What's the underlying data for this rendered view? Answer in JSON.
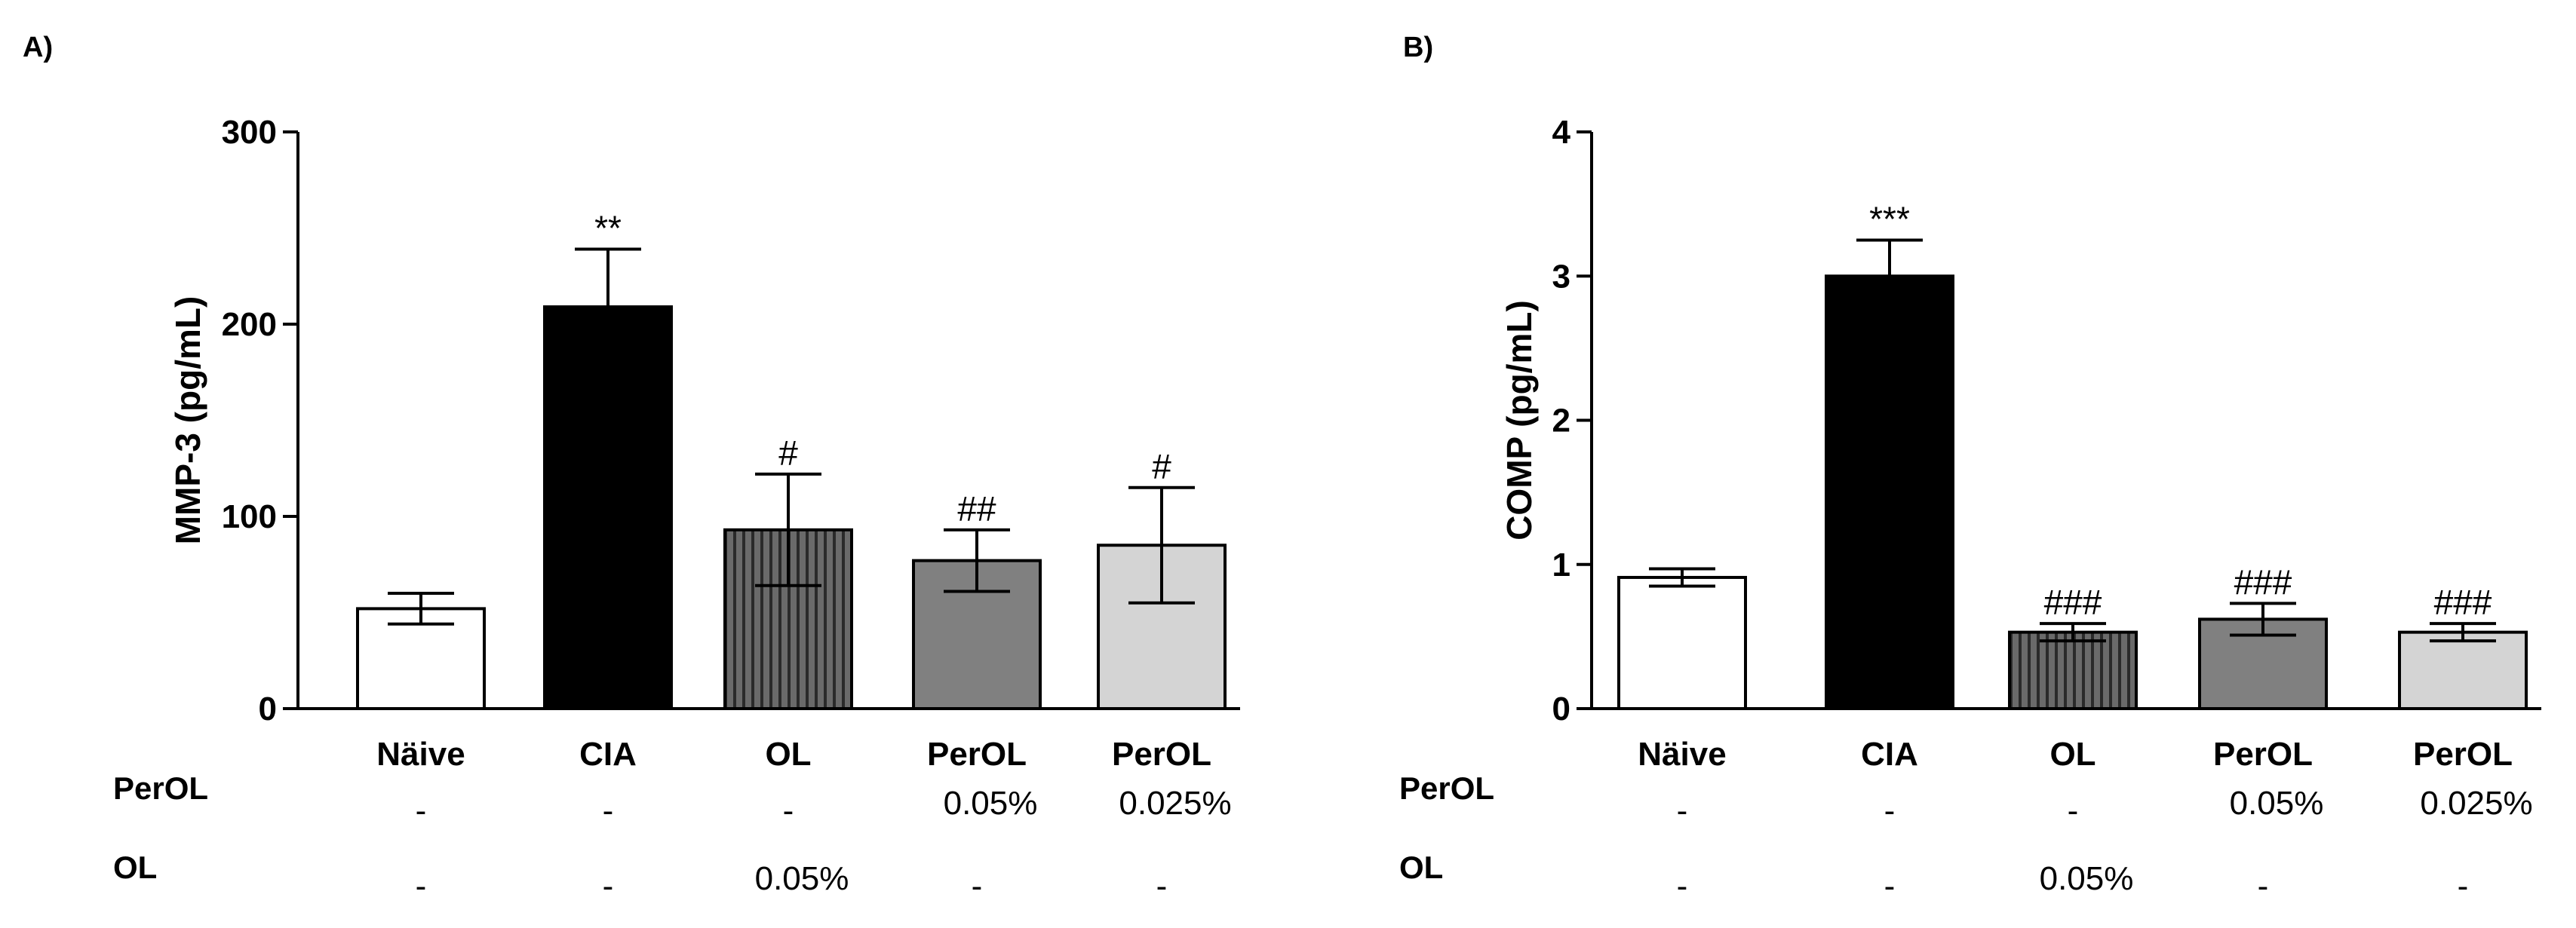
{
  "chart_data": [
    {
      "panel": "A)",
      "type": "bar",
      "ylabel": "MMP-3 (pg/mL)",
      "xlabel": "",
      "ylim": [
        0,
        300
      ],
      "yticks": [
        "0",
        "100",
        "200",
        "300"
      ],
      "categories": [
        "Näive",
        "CIA",
        "OL",
        "PerOL",
        "PerOL"
      ],
      "values": [
        52,
        209,
        93,
        77,
        85
      ],
      "errors": [
        8,
        30,
        29,
        16,
        30
      ],
      "significance": [
        "",
        "**",
        "#",
        "##",
        "#"
      ],
      "fills": [
        "#ffffff",
        "#000000",
        "#5a5a5a",
        "#808080",
        "#d4d4d4"
      ],
      "hatched": [
        false,
        false,
        true,
        false,
        false
      ],
      "conditions": [
        {
          "name": "PerOL",
          "values": [
            "-",
            "-",
            "-",
            "0.05%",
            "0.025%"
          ]
        },
        {
          "name": "OL",
          "values": [
            "-",
            "-",
            "0.05%",
            "-",
            "-"
          ]
        }
      ]
    },
    {
      "panel": "B)",
      "type": "bar",
      "ylabel": "COMP (pg/mL)",
      "xlabel": "",
      "ylim": [
        0,
        4
      ],
      "yticks": [
        "0",
        "1",
        "2",
        "3",
        "4"
      ],
      "categories": [
        "Näive",
        "CIA",
        "OL",
        "PerOL",
        "PerOL"
      ],
      "values": [
        0.91,
        3.0,
        0.53,
        0.62,
        0.53
      ],
      "errors": [
        0.06,
        0.25,
        0.06,
        0.11,
        0.06
      ],
      "significance": [
        "",
        "***",
        "###",
        "###",
        "###"
      ],
      "fills": [
        "#ffffff",
        "#000000",
        "#5a5a5a",
        "#808080",
        "#d4d4d4"
      ],
      "hatched": [
        false,
        false,
        true,
        false,
        false
      ],
      "conditions": [
        {
          "name": "PerOL",
          "values": [
            "-",
            "-",
            "-",
            "0.05%",
            "0.025%"
          ]
        },
        {
          "name": "OL",
          "values": [
            "-",
            "-",
            "0.05%",
            "-",
            "-"
          ]
        }
      ]
    }
  ]
}
